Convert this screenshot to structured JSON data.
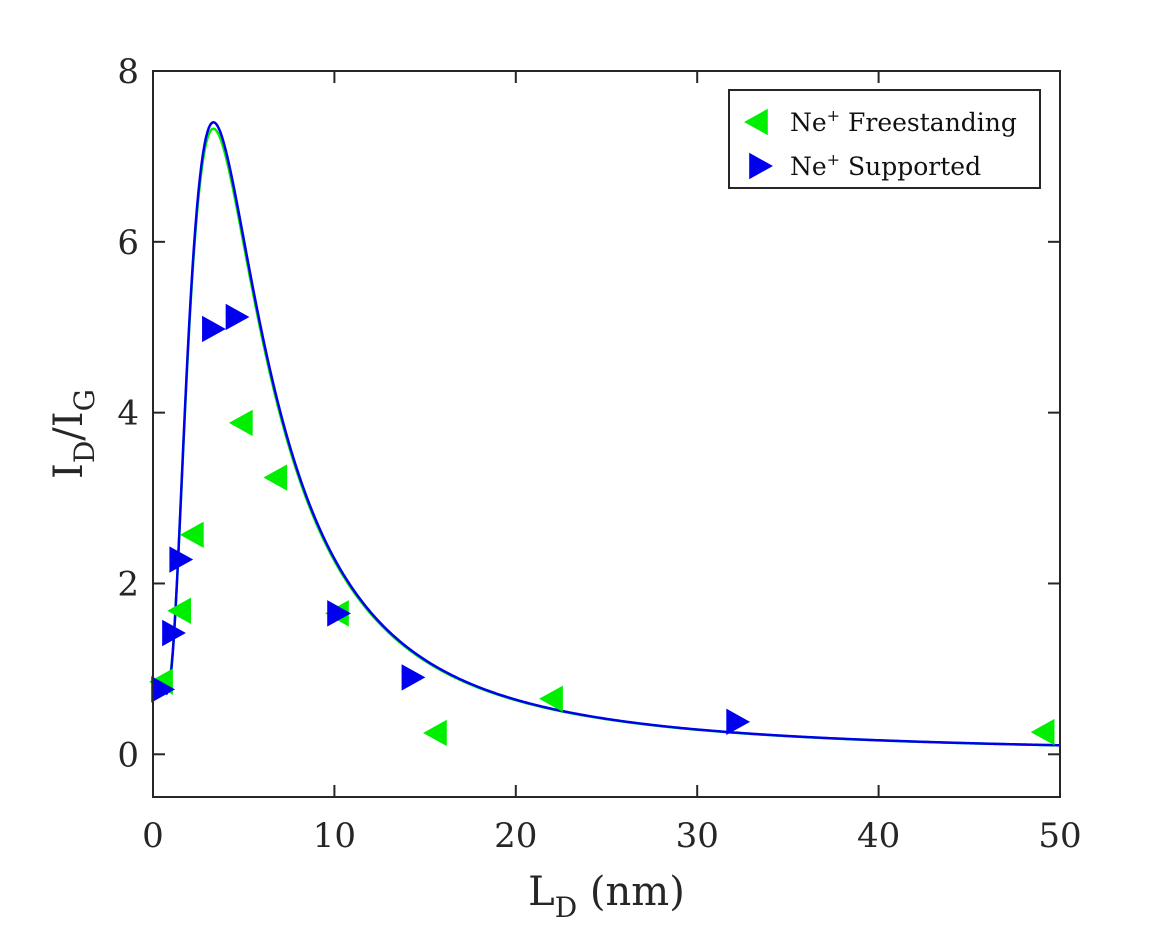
{
  "chart_data": {
    "type": "scatter",
    "title": "",
    "xlabel": {
      "main": "L",
      "sub": "D",
      "suffix": " (nm)"
    },
    "ylabel": {
      "main1": "I",
      "sub1": "D",
      "slash": "/",
      "main2": "I",
      "sub2": "G"
    },
    "xlim": [
      0,
      50
    ],
    "ylim": [
      -0.5,
      8
    ],
    "xticks": [
      0,
      10,
      20,
      30,
      40,
      50
    ],
    "yticks": [
      0,
      2,
      4,
      6,
      8
    ],
    "xtick_labels": [
      "0",
      "10",
      "20",
      "30",
      "40",
      "50"
    ],
    "ytick_labels": [
      "0",
      "2",
      "4",
      "6",
      "8"
    ],
    "legend_position": "top-right",
    "series": [
      {
        "name": "Ne+ Freestanding",
        "legend_base": "Ne",
        "legend_sup": "+",
        "legend_rest": " Freestanding",
        "color": "#00ee00",
        "marker": "triangle-left",
        "points": [
          {
            "x": 0.5,
            "y": 0.85
          },
          {
            "x": 1.5,
            "y": 1.68
          },
          {
            "x": 2.2,
            "y": 2.57
          },
          {
            "x": 4.9,
            "y": 3.88
          },
          {
            "x": 6.8,
            "y": 3.24
          },
          {
            "x": 10.2,
            "y": 1.65
          },
          {
            "x": 15.6,
            "y": 0.25
          },
          {
            "x": 22.0,
            "y": 0.65
          },
          {
            "x": 49.1,
            "y": 0.26
          }
        ],
        "fit": {
          "A": 9.72,
          "r": 1.0,
          "I0": 0.85
        }
      },
      {
        "name": "Ne+ Supported",
        "legend_base": "Ne",
        "legend_sup": "+",
        "legend_rest": " Supported",
        "color": "#0000ee",
        "marker": "triangle-right",
        "points": [
          {
            "x": 0.5,
            "y": 0.76
          },
          {
            "x": 1.1,
            "y": 1.42
          },
          {
            "x": 1.5,
            "y": 2.28
          },
          {
            "x": 3.3,
            "y": 4.98
          },
          {
            "x": 4.6,
            "y": 5.12
          },
          {
            "x": 10.2,
            "y": 1.65
          },
          {
            "x": 14.3,
            "y": 0.9
          },
          {
            "x": 32.2,
            "y": 0.38
          }
        ],
        "fit": {
          "A": 9.82,
          "r": 1.0,
          "I0": 0.78
        }
      }
    ]
  }
}
